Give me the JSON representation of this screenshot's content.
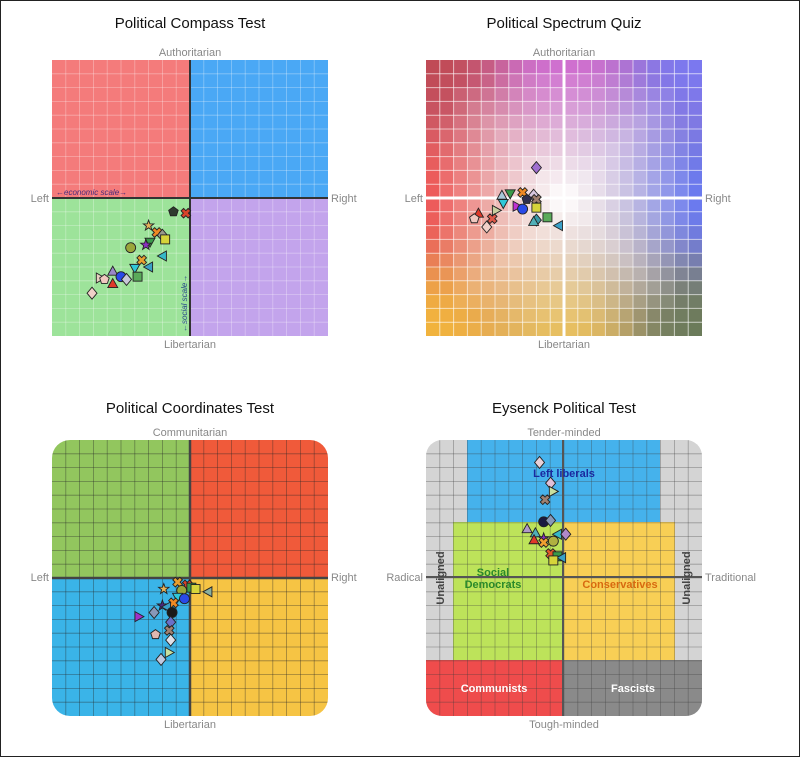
{
  "chart_data": [
    {
      "type": "scatter",
      "title": "Political Compass Test",
      "axis_labels": {
        "top": "Authoritarian",
        "bottom": "Libertarian",
        "left": "Left",
        "right": "Right"
      },
      "annotations": {
        "economic": "←economic scale→",
        "social": "←social scale→"
      },
      "xlim": [
        -10,
        10
      ],
      "ylim": [
        -10,
        10
      ],
      "grid": true,
      "quadrant_colors": {
        "top_left": "#f47b7b",
        "top_right": "#4aa8f5",
        "bottom_left": "#9de39a",
        "bottom_right": "#c3a4ec"
      },
      "points": [
        [
          -1.2,
          -1.0,
          "pentagon",
          "#2f3b2f"
        ],
        [
          -0.3,
          -1.1,
          "cross",
          "#d9442a"
        ],
        [
          -3.0,
          -2.0,
          "star",
          "#e6b35a"
        ],
        [
          -2.4,
          -2.5,
          "cross",
          "#f08a24"
        ],
        [
          -2.0,
          -2.7,
          "diamond",
          "#9a9a8a"
        ],
        [
          -1.8,
          -3.0,
          "square",
          "#d6d43a"
        ],
        [
          -2.9,
          -3.2,
          "triangle-down",
          "#3a9a4a"
        ],
        [
          -3.2,
          -3.4,
          "star",
          "#8b2fc0"
        ],
        [
          -4.3,
          -3.6,
          "circle",
          "#9aa63a"
        ],
        [
          -2.0,
          -4.2,
          "triangle-left",
          "#35b8c8"
        ],
        [
          -3.5,
          -4.5,
          "cross",
          "#e8a030"
        ],
        [
          -4.0,
          -5.1,
          "triangle-down",
          "#30c8d8"
        ],
        [
          -3.0,
          -5.0,
          "triangle-left",
          "#3aa0c8"
        ],
        [
          -5.6,
          -5.3,
          "triangle-up",
          "#9a88c8"
        ],
        [
          -5.0,
          -5.7,
          "circle",
          "#2a4ae8"
        ],
        [
          -4.6,
          -5.9,
          "diamond",
          "#c8c8d8"
        ],
        [
          -3.8,
          -5.7,
          "square",
          "#5aaa5a"
        ],
        [
          -6.5,
          -5.8,
          "triangle-right",
          "#e8d0c0"
        ],
        [
          -6.2,
          -5.9,
          "pentagon",
          "#f0c8c0"
        ],
        [
          -5.6,
          -6.2,
          "triangle-up",
          "#e03a2a"
        ],
        [
          -7.1,
          -6.9,
          "diamond",
          "#f0d0c8"
        ]
      ]
    },
    {
      "type": "scatter",
      "title": "Political Spectrum Quiz",
      "axis_labels": {
        "top": "Authoritarian",
        "bottom": "Libertarian",
        "left": "Left",
        "right": "Right"
      },
      "xlim": [
        -10,
        10
      ],
      "ylim": [
        -10,
        10
      ],
      "grid": true,
      "gradient_corner_colors": {
        "top_left": "#c04a55",
        "top_right": "#7a78f0",
        "bottom_left": "#f2b43c",
        "bottom_right": "#6a7a58",
        "left": "#ee5a5a",
        "top": "#d070d0",
        "right": "#6a7af0",
        "bottom": "#e8c060"
      },
      "points": [
        [
          -2.0,
          2.2,
          "diamond",
          "#a070d0"
        ],
        [
          -4.5,
          0.2,
          "triangle-up",
          "#a8c8d8"
        ],
        [
          -3.9,
          0.3,
          "triangle-down",
          "#3a9a4a"
        ],
        [
          -3.0,
          0.4,
          "cross",
          "#f08a24"
        ],
        [
          -2.2,
          0.2,
          "diamond",
          "#d8c8e0"
        ],
        [
          -2.7,
          -0.1,
          "pentagon",
          "#2f2f4f"
        ],
        [
          -2.0,
          -0.1,
          "cross",
          "#a08070"
        ],
        [
          -4.4,
          -0.4,
          "triangle-down",
          "#30c8d8"
        ],
        [
          -3.4,
          -0.6,
          "triangle-right",
          "#c030d0"
        ],
        [
          -3.0,
          -0.8,
          "circle",
          "#2a4ae8"
        ],
        [
          -2.0,
          -0.7,
          "square",
          "#d6d43a"
        ],
        [
          -6.2,
          -1.1,
          "triangle-up",
          "#e03a2a"
        ],
        [
          -4.9,
          -0.9,
          "triangle-right",
          "#c8d0a0"
        ],
        [
          -6.5,
          -1.5,
          "pentagon",
          "#f0c8c0"
        ],
        [
          -5.2,
          -1.5,
          "cross",
          "#e05a4a"
        ],
        [
          -1.2,
          -1.4,
          "square",
          "#5aaa5a"
        ],
        [
          -2.0,
          -1.6,
          "diamond",
          "#3a9aa8"
        ],
        [
          -2.2,
          -1.7,
          "triangle-up",
          "#50b0b8"
        ],
        [
          -0.4,
          -2.0,
          "triangle-left",
          "#3aa0c8"
        ],
        [
          -5.6,
          -2.1,
          "diamond",
          "#f0d0c8"
        ]
      ]
    },
    {
      "type": "scatter",
      "title": "Political Coordinates Test",
      "axis_labels": {
        "top": "Communitarian",
        "bottom": "Libertarian",
        "left": "Left",
        "right": "Right"
      },
      "xlim": [
        -10,
        10
      ],
      "ylim": [
        -10,
        10
      ],
      "grid": true,
      "quadrant_colors": {
        "top_left": "#92c65e",
        "top_right": "#f05a3a",
        "bottom_left": "#3ab4e8",
        "bottom_right": "#f6c444"
      },
      "points": [
        [
          -0.9,
          -0.3,
          "cross",
          "#e8a030"
        ],
        [
          -0.2,
          -0.5,
          "cross",
          "#d9442a"
        ],
        [
          0.1,
          -0.7,
          "square",
          "#3a9a4a"
        ],
        [
          0.4,
          -0.8,
          "square",
          "#d6d43a"
        ],
        [
          1.3,
          -1.0,
          "triangle-left",
          "#8ab0a0"
        ],
        [
          -1.9,
          -0.8,
          "star",
          "#e6b35a"
        ],
        [
          -0.6,
          -0.9,
          "circle",
          "#9aa63a"
        ],
        [
          -0.9,
          -1.4,
          "triangle-down",
          "#30c8d8"
        ],
        [
          -0.4,
          -1.5,
          "circle",
          "#2a4ae8"
        ],
        [
          -1.2,
          -1.8,
          "cross",
          "#f08a24"
        ],
        [
          -2.0,
          -2.0,
          "star",
          "#4a2a80"
        ],
        [
          -1.7,
          -2.1,
          "triangle-left",
          "#3aa0c8"
        ],
        [
          -2.6,
          -2.5,
          "diamond",
          "#8898b8"
        ],
        [
          -1.3,
          -2.5,
          "circle",
          "#1a1a1a"
        ],
        [
          -3.7,
          -2.8,
          "triangle-right",
          "#a030c8"
        ],
        [
          -1.4,
          -3.2,
          "diamond",
          "#6a70c8"
        ],
        [
          -1.5,
          -3.8,
          "cross",
          "#a08070"
        ],
        [
          -2.5,
          -4.1,
          "pentagon",
          "#e0b8b0"
        ],
        [
          -1.4,
          -4.5,
          "diamond",
          "#e0e0e8"
        ],
        [
          -1.5,
          -5.4,
          "triangle-right",
          "#c8e0a0"
        ],
        [
          -2.1,
          -5.9,
          "diamond",
          "#c0c8e0"
        ]
      ]
    },
    {
      "type": "scatter",
      "title": "Eysenck Political Test",
      "axis_labels": {
        "top": "Tender-minded",
        "bottom": "Tough-minded",
        "left": "Radical",
        "right": "Traditional"
      },
      "regions": {
        "left_liberals": "Left liberals",
        "social_democrats": "Social Democrats",
        "conservatives": "Conservatives",
        "communists": "Communists",
        "fascists": "Fascists",
        "unaligned": "Unaligned"
      },
      "region_colors": {
        "left_liberals": "#45b2ec",
        "social_democrats": "#bde35a",
        "conservatives": "#f8cf55",
        "communists": "#ef4c4c",
        "fascists": "#8a8a8a",
        "unaligned": "#d4d4d4",
        "left_liberals_text": "#1a2aa0",
        "social_democrats_text": "#2a8a2a",
        "conservatives_text": "#d86a10"
      },
      "xlim": [
        -10,
        10
      ],
      "ylim": [
        -10,
        10
      ],
      "grid": true,
      "points": [
        [
          -1.7,
          8.3,
          "diamond",
          "#e8d0d8"
        ],
        [
          -0.9,
          6.8,
          "diamond",
          "#e0c0d8"
        ],
        [
          -0.7,
          6.2,
          "triangle-right",
          "#c8e0a0"
        ],
        [
          -1.3,
          5.6,
          "cross",
          "#a08070"
        ],
        [
          -1.4,
          4.0,
          "circle",
          "#1a1a40"
        ],
        [
          -0.9,
          4.1,
          "diamond",
          "#8898b8"
        ],
        [
          -2.6,
          3.5,
          "triangle-up",
          "#b098c8"
        ],
        [
          -2.0,
          3.2,
          "triangle-up",
          "#50b0b8"
        ],
        [
          -0.4,
          3.1,
          "triangle-left",
          "#35b8c8"
        ],
        [
          0.2,
          3.1,
          "diamond",
          "#b088c8"
        ],
        [
          -1.4,
          2.8,
          "star",
          "#8b2fc0"
        ],
        [
          -2.1,
          2.7,
          "triangle-up",
          "#e03a2a"
        ],
        [
          -0.7,
          2.6,
          "circle",
          "#b0b040"
        ],
        [
          -1.4,
          2.5,
          "cross",
          "#f0a030"
        ],
        [
          -0.9,
          1.7,
          "cross",
          "#e05a2a"
        ],
        [
          -0.4,
          1.5,
          "square",
          "#3a9a4a"
        ],
        [
          -0.1,
          1.4,
          "triangle-left",
          "#3aa0c8"
        ],
        [
          -0.7,
          1.2,
          "square",
          "#d6d43a"
        ]
      ]
    }
  ]
}
